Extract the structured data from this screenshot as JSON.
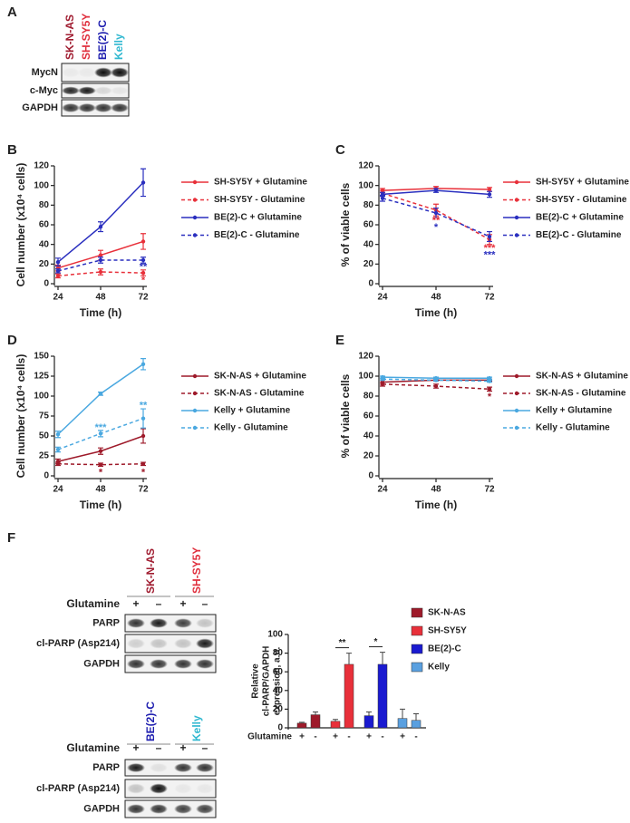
{
  "panels": [
    "A",
    "B",
    "C",
    "D",
    "E",
    "F"
  ],
  "blot_a": {
    "columns": [
      {
        "label": "SK-N-AS",
        "color": "#a01c30"
      },
      {
        "label": "SH-SY5Y",
        "color": "#e0303e"
      },
      {
        "label": "BE(2)-C",
        "color": "#2020b0"
      },
      {
        "label": "Kelly",
        "color": "#30b8d0"
      }
    ],
    "rows": [
      "MycN",
      "c-Myc",
      "GAPDH"
    ]
  },
  "blot_f": [
    {
      "columns": [
        {
          "label": "SK-N-AS",
          "color": "#a01c30"
        },
        {
          "label": "SH-SY5Y",
          "color": "#e0303e"
        }
      ],
      "treatment": "Glutamine",
      "conditions": [
        "+",
        "–",
        "+",
        "–"
      ],
      "rows": [
        "PARP",
        "cl-PARP (Asp214)",
        "GAPDH"
      ]
    },
    {
      "columns": [
        {
          "label": "BE(2)-C",
          "color": "#2020b0"
        },
        {
          "label": "Kelly",
          "color": "#30b8d0"
        }
      ],
      "treatment": "Glutamine",
      "conditions": [
        "+",
        "–",
        "+",
        "–"
      ],
      "rows": [
        "PARP",
        "cl-PARP (Asp214)",
        "GAPDH"
      ]
    }
  ],
  "chart_data": [
    {
      "type": "line",
      "xlabel": "Time (h)",
      "ylabel": "Cell number (x10⁴ cells)",
      "x": [
        24,
        48,
        72
      ],
      "xlim": [
        24,
        72
      ],
      "xticks": [
        24,
        48,
        72
      ],
      "ylim": [
        0,
        120
      ],
      "yticks": [
        0,
        20,
        40,
        60,
        80,
        100,
        120
      ],
      "series": [
        {
          "name": "SH-SY5Y + Glutamine",
          "color": "#e8303a",
          "dashed": false,
          "values": [
            16,
            29,
            43
          ],
          "errors": [
            3,
            5,
            8
          ]
        },
        {
          "name": "SH-SY5Y - Glutamine",
          "color": "#e8303a",
          "dashed": true,
          "values": [
            8,
            12,
            11
          ],
          "errors": [
            2,
            3,
            3
          ]
        },
        {
          "name": "BE(2)-C + Glutamine",
          "color": "#2a2fbf",
          "dashed": false,
          "values": [
            22,
            58,
            103
          ],
          "errors": [
            4,
            5,
            14
          ]
        },
        {
          "name": "BE(2)-C - Glutamine",
          "color": "#2a2fbf",
          "dashed": true,
          "values": [
            13,
            24,
            24
          ],
          "errors": [
            2,
            3,
            3
          ]
        }
      ],
      "annotations": [
        {
          "text": "**",
          "x": 72,
          "y": 17,
          "color": "#2a2fbf"
        },
        {
          "text": "*",
          "x": 72,
          "y": 3,
          "color": "#e8303a"
        }
      ]
    },
    {
      "type": "line",
      "xlabel": "Time (h)",
      "ylabel": "% of viable cells",
      "x": [
        24,
        48,
        72
      ],
      "xlim": [
        24,
        72
      ],
      "xticks": [
        24,
        48,
        72
      ],
      "ylim": [
        0,
        120
      ],
      "yticks": [
        0,
        20,
        40,
        60,
        80,
        100,
        120
      ],
      "series": [
        {
          "name": "SH-SY5Y + Glutamine",
          "color": "#e8303a",
          "dashed": false,
          "values": [
            95,
            97,
            96
          ],
          "errors": [
            2,
            2,
            2
          ]
        },
        {
          "name": "SH-SY5Y - Glutamine",
          "color": "#e8303a",
          "dashed": true,
          "values": [
            92,
            75,
            45
          ],
          "errors": [
            3,
            6,
            5
          ]
        },
        {
          "name": "BE(2)-C + Glutamine",
          "color": "#2a2fbf",
          "dashed": false,
          "values": [
            91,
            95,
            91
          ],
          "errors": [
            2,
            2,
            3
          ]
        },
        {
          "name": "BE(2)-C - Glutamine",
          "color": "#2a2fbf",
          "dashed": true,
          "values": [
            87,
            72,
            48
          ],
          "errors": [
            3,
            5,
            5
          ]
        }
      ],
      "annotations": [
        {
          "text": "**",
          "x": 48,
          "y": 64,
          "color": "#e8303a"
        },
        {
          "text": "*",
          "x": 48,
          "y": 57,
          "color": "#2a2fbf"
        },
        {
          "text": "***",
          "x": 72,
          "y": 36,
          "color": "#e8303a"
        },
        {
          "text": "***",
          "x": 72,
          "y": 29,
          "color": "#2a2fbf"
        }
      ]
    },
    {
      "type": "line",
      "xlabel": "Time (h)",
      "ylabel": "Cell number (x10⁴ cells)",
      "x": [
        24,
        48,
        72
      ],
      "xlim": [
        24,
        72
      ],
      "xticks": [
        24,
        48,
        72
      ],
      "ylim": [
        0,
        150
      ],
      "yticks": [
        0,
        25,
        50,
        75,
        100,
        125,
        150
      ],
      "series": [
        {
          "name": "SK-N-AS + Glutamine",
          "color": "#9e1a2a",
          "dashed": false,
          "values": [
            18,
            31,
            50
          ],
          "errors": [
            3,
            4,
            9
          ]
        },
        {
          "name": "SK-N-AS - Glutamine",
          "color": "#9e1a2a",
          "dashed": true,
          "values": [
            15,
            14,
            15
          ],
          "errors": [
            2,
            2,
            2
          ]
        },
        {
          "name": "Kelly + Glutamine",
          "color": "#4aa8e0",
          "dashed": false,
          "values": [
            52,
            103,
            140
          ],
          "errors": [
            4,
            2,
            7
          ]
        },
        {
          "name": "Kelly - Glutamine",
          "color": "#4aa8e0",
          "dashed": true,
          "values": [
            33,
            53,
            72
          ],
          "errors": [
            3,
            4,
            12
          ]
        }
      ],
      "annotations": [
        {
          "text": "***",
          "x": 48,
          "y": 60,
          "color": "#4aa8e0"
        },
        {
          "text": "**",
          "x": 72,
          "y": 88,
          "color": "#4aa8e0"
        },
        {
          "text": "*",
          "x": 48,
          "y": 4,
          "color": "#9e1a2a"
        },
        {
          "text": "*",
          "x": 72,
          "y": 4,
          "color": "#9e1a2a"
        }
      ]
    },
    {
      "type": "line",
      "xlabel": "Time (h)",
      "ylabel": "% of viable cells",
      "x": [
        24,
        48,
        72
      ],
      "xlim": [
        24,
        72
      ],
      "xticks": [
        24,
        48,
        72
      ],
      "ylim": [
        0,
        120
      ],
      "yticks": [
        0,
        20,
        40,
        60,
        80,
        100,
        120
      ],
      "series": [
        {
          "name": "SK-N-AS + Glutamine",
          "color": "#9e1a2a",
          "dashed": false,
          "values": [
            94,
            96,
            96
          ],
          "errors": [
            2,
            1,
            1
          ]
        },
        {
          "name": "SK-N-AS - Glutamine",
          "color": "#9e1a2a",
          "dashed": true,
          "values": [
            92,
            90,
            87
          ],
          "errors": [
            2,
            2,
            2
          ]
        },
        {
          "name": "Kelly + Glutamine",
          "color": "#4aa8e0",
          "dashed": false,
          "values": [
            99,
            98,
            98
          ],
          "errors": [
            1,
            1,
            1
          ]
        },
        {
          "name": "Kelly - Glutamine",
          "color": "#4aa8e0",
          "dashed": true,
          "values": [
            97,
            96,
            95
          ],
          "errors": [
            1,
            1,
            1
          ]
        }
      ],
      "annotations": [
        {
          "text": "*",
          "x": 72,
          "y": 79,
          "color": "#9e1a2a"
        }
      ]
    },
    {
      "type": "bar",
      "ylabel": [
        "Relative",
        "cl-PARP/GAPDH",
        "expression, a.u."
      ],
      "xlabel": "Glutamine",
      "categories": [
        "+",
        "-"
      ],
      "ylim": [
        0,
        100
      ],
      "yticks": [
        0,
        20,
        40,
        60,
        80,
        100
      ],
      "series": [
        {
          "name": "SK-N-AS",
          "color": "#9e1a2a",
          "values": [
            5,
            14
          ],
          "errors": [
            1,
            3
          ]
        },
        {
          "name": "SH-SY5Y",
          "color": "#e8303a",
          "values": [
            7,
            68
          ],
          "errors": [
            2,
            12
          ]
        },
        {
          "name": "BE(2)-C",
          "color": "#1a1ad0",
          "values": [
            13,
            68
          ],
          "errors": [
            4,
            13
          ]
        },
        {
          "name": "Kelly",
          "color": "#5aa0e0",
          "values": [
            10,
            8
          ],
          "errors": [
            10,
            7
          ]
        }
      ],
      "annotations": [
        {
          "text": "**",
          "group": "SH-SY5Y"
        },
        {
          "text": "*",
          "group": "BE(2)-C"
        }
      ]
    }
  ]
}
